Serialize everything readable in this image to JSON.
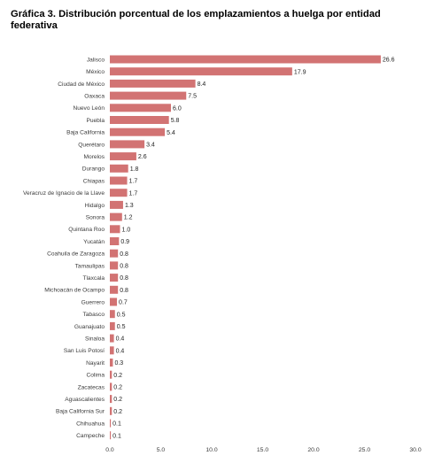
{
  "title": "Gráfica 3. Distribución porcentual de los emplazamientos a huelga por entidad federativa",
  "chart_data": {
    "type": "bar",
    "orientation": "horizontal",
    "title": "Gráfica 3. Distribución porcentual de los emplazamientos a huelga por entidad federativa",
    "xlabel": "",
    "ylabel": "",
    "xlim": [
      0,
      30
    ],
    "x_ticks": [
      "0.0",
      "5.0",
      "10.0",
      "15.0",
      "20.0",
      "25.0",
      "30.0"
    ],
    "grid": false,
    "bar_color": "#d27373",
    "categories": [
      "Jalisco",
      "México",
      "Ciudad de México",
      "Oaxaca",
      "Nuevo León",
      "Puebla",
      "Baja California",
      "Querétaro",
      "Morelos",
      "Durango",
      "Chiapas",
      "Veracruz de Ignacio de la Llave",
      "Hidalgo",
      "Sonora",
      "Quintana Roo",
      "Yucatán",
      "Coahuila de Zaragoza",
      "Tamaulipas",
      "Tlaxcala",
      "Michoacán de Ocampo",
      "Guerrero",
      "Tabasco",
      "Guanajuato",
      "Sinaloa",
      "San Luis Potosí",
      "Nayarit",
      "Colima",
      "Zacatecas",
      "Aguascalientes",
      "Baja California Sur",
      "Chihuahua",
      "Campeche"
    ],
    "values": [
      26.6,
      17.9,
      8.4,
      7.5,
      6.0,
      5.8,
      5.4,
      3.4,
      2.6,
      1.8,
      1.7,
      1.7,
      1.3,
      1.2,
      1.0,
      0.9,
      0.8,
      0.8,
      0.8,
      0.8,
      0.7,
      0.5,
      0.5,
      0.4,
      0.4,
      0.3,
      0.2,
      0.2,
      0.2,
      0.2,
      0.1,
      0.1
    ],
    "value_labels": [
      "26.6",
      "17.9",
      "8.4",
      "7.5",
      "6.0",
      "5.8",
      "5.4",
      "3.4",
      "2.6",
      "1.8",
      "1.7",
      "1.7",
      "1.3",
      "1.2",
      "1.0",
      "0.9",
      "0.8",
      "0.8",
      "0.8",
      "0.8",
      "0.7",
      "0.5",
      "0.5",
      "0.4",
      "0.4",
      "0.3",
      "0.2",
      "0.2",
      "0.2",
      "0.2",
      "0.1",
      "0.1"
    ]
  }
}
